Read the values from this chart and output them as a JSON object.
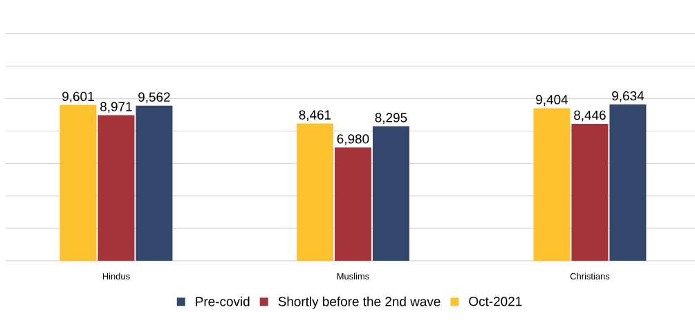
{
  "chart_data": {
    "type": "bar",
    "categories": [
      "Hindus",
      "Muslims",
      "Christians"
    ],
    "series": [
      {
        "name": "Oct-2021",
        "color": "#fec22e",
        "values": [
          9601,
          8461,
          9404
        ],
        "value_labels": [
          "9,601",
          "8,461",
          "9,404"
        ]
      },
      {
        "name": "Shortly before the 2nd wave",
        "color": "#a5333a",
        "values": [
          8971,
          6980,
          8446
        ],
        "value_labels": [
          "8,971",
          "6,980",
          "8,446"
        ]
      },
      {
        "name": "Pre-covid",
        "color": "#33466b",
        "values": [
          9562,
          8295,
          9634
        ],
        "value_labels": [
          "9,562",
          "8,295",
          "9,634"
        ]
      }
    ],
    "tick_labels": "x",
    "grid": "y",
    "legend": "bottom"
  }
}
